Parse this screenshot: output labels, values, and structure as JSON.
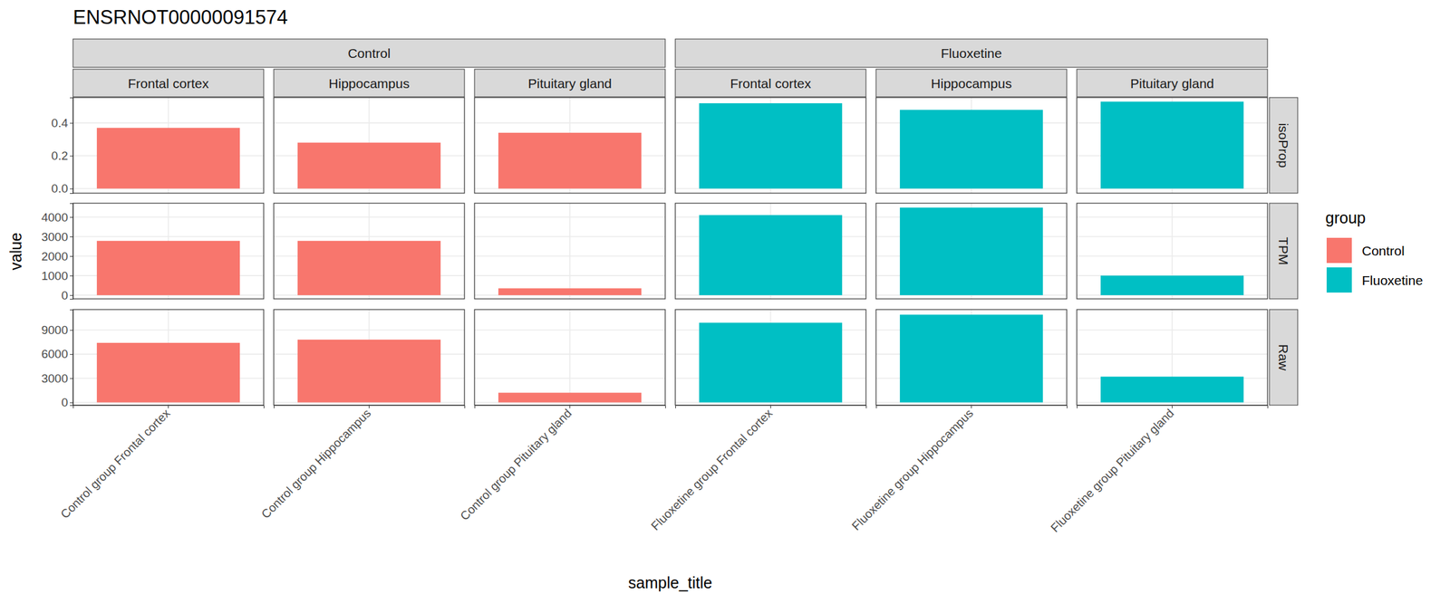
{
  "chart_data": {
    "type": "bar",
    "title": "ENSRNOT00000091574",
    "x_label": "sample_title",
    "y_label": "value",
    "legend_title": "group",
    "legend": "right",
    "grid": true,
    "categories": [
      "Control group Frontal cortex",
      "Control group Hippocampus",
      "Control group Pituitary gland",
      "Fluoxetine group Frontal cortex",
      "Fluoxetine group Hippocampus",
      "Fluoxetine group Pituitary gland"
    ],
    "panel_groups": [
      {
        "label": "Control",
        "columns": [
          "Frontal cortex",
          "Hippocampus",
          "Pituitary gland"
        ]
      },
      {
        "label": "Fluoxetine",
        "columns": [
          "Frontal cortex",
          "Hippocampus",
          "Pituitary gland"
        ]
      }
    ],
    "series": [
      {
        "name": "Control",
        "color": "#F8766D"
      },
      {
        "name": "Fluoxetine",
        "color": "#00BFC4"
      }
    ],
    "rows": [
      {
        "label": "isoProp",
        "ylim": [
          -0.028,
          0.555
        ],
        "yticks": [
          {
            "value": 0,
            "label": "0.0"
          },
          0.2,
          0.4
        ],
        "values": [
          0.37,
          0.28,
          0.34,
          0.52,
          0.48,
          0.53
        ]
      },
      {
        "label": "TPM",
        "ylim": [
          -188,
          4706
        ],
        "yticks": [
          0,
          1000,
          2000,
          3000,
          4000
        ],
        "values": [
          2780,
          2780,
          350,
          4100,
          4480,
          1000
        ]
      },
      {
        "label": "Raw",
        "ylim": [
          -346,
          11538
        ],
        "yticks": [
          0,
          3000,
          6000,
          9000
        ],
        "values": [
          7400,
          7800,
          1200,
          9900,
          10900,
          3200
        ]
      }
    ]
  }
}
